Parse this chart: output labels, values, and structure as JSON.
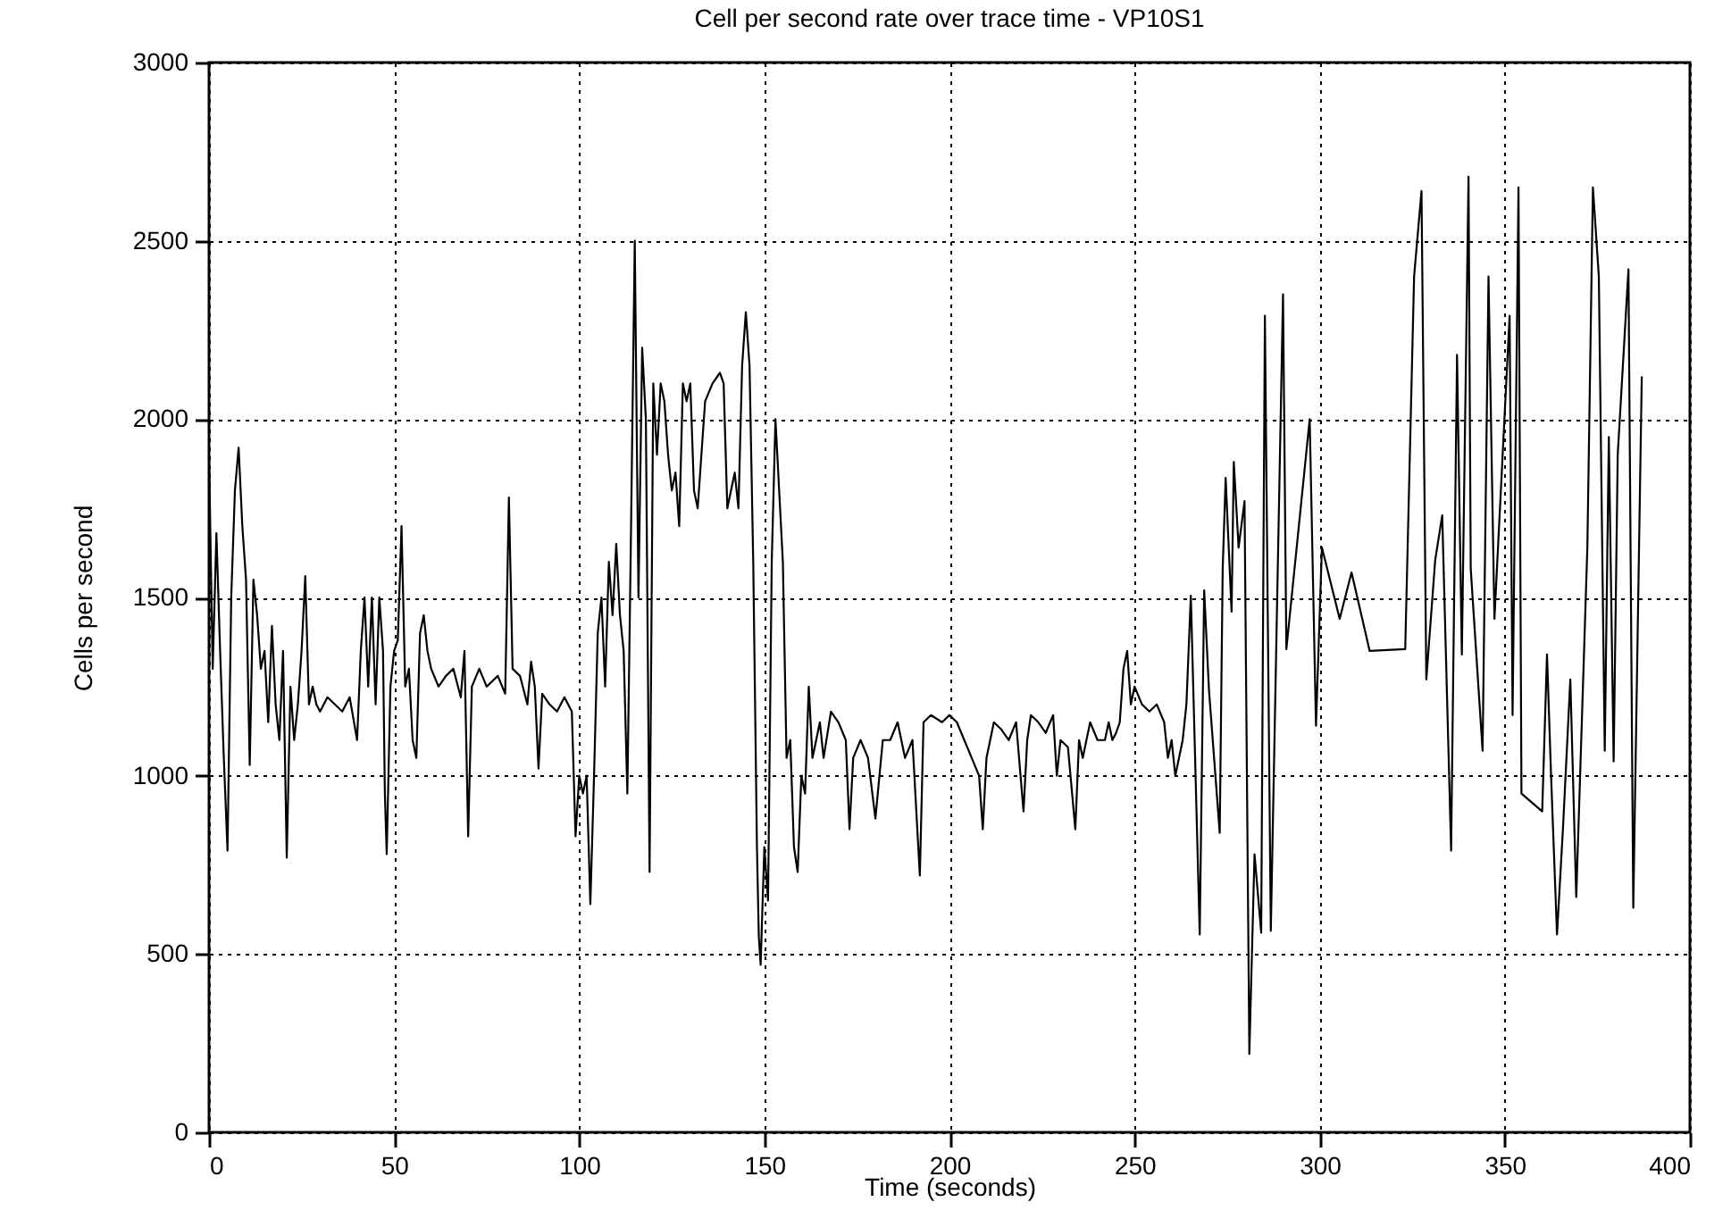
{
  "chart_data": {
    "type": "line",
    "title": "Cell per second rate over trace time - VP10S1",
    "xlabel": "Time (seconds)",
    "ylabel": "Cells per second",
    "xlim": [
      0,
      400
    ],
    "xticks": [
      0,
      50,
      100,
      150,
      200,
      250,
      300,
      350,
      400
    ],
    "ylim": [
      0,
      3000
    ],
    "yticks": [
      0,
      500,
      1000,
      1500,
      2000,
      2500,
      3000
    ],
    "grid": true,
    "legend": false,
    "line_style": "solid",
    "series": [
      {
        "color": "#000000",
        "x": [
          0,
          1,
          2,
          3,
          4,
          5,
          6,
          7,
          8,
          9,
          10,
          11,
          12,
          13,
          14,
          15,
          16,
          17,
          18,
          19,
          20,
          21,
          22,
          23,
          24,
          25,
          26,
          27,
          28,
          29,
          30,
          32,
          34,
          36,
          38,
          40,
          41,
          42,
          43,
          44,
          45,
          46,
          47,
          47.5,
          48,
          49,
          50,
          51,
          52,
          53,
          54,
          55,
          56,
          57,
          58,
          59,
          60,
          62,
          64,
          66,
          68,
          69,
          70,
          71,
          73,
          75,
          78,
          80,
          81,
          82,
          84,
          86,
          87,
          88,
          89,
          90,
          92,
          94,
          96,
          98,
          99,
          100,
          101,
          102,
          103,
          104,
          105,
          106,
          107,
          108,
          109,
          110,
          111,
          112,
          113,
          114,
          115,
          116,
          117,
          118,
          119,
          120,
          121,
          122,
          123,
          124,
          125,
          126,
          127,
          128,
          129,
          130,
          131,
          132,
          134,
          136,
          138,
          139,
          140,
          141,
          142,
          143,
          144,
          145,
          146,
          147,
          148,
          148.5,
          149,
          150,
          151,
          152,
          153,
          154,
          155,
          156,
          157,
          158,
          159,
          160,
          161,
          162,
          163,
          164,
          165,
          166,
          168,
          170,
          172,
          173,
          174,
          176,
          178,
          180,
          182,
          184,
          186,
          188,
          190,
          192,
          193,
          195,
          198,
          200,
          202,
          204,
          206,
          208,
          209,
          210,
          212,
          214,
          216,
          218,
          220,
          221,
          222,
          224,
          226,
          228,
          229,
          230,
          232,
          234,
          235,
          236,
          238,
          240,
          242,
          243,
          244,
          245,
          246,
          247,
          248,
          249,
          250,
          252,
          254,
          256,
          258,
          259,
          260,
          261,
          262,
          263,
          264,
          265.2,
          267.6,
          268.8,
          270.1,
          273,
          273.8,
          274.6,
          276.2,
          276.8,
          278.1,
          279.7,
          281,
          282.4,
          284.2,
          285.2,
          286.8,
          290.1,
          291,
          297.3,
          299,
          300.6,
          305.4,
          308.6,
          313.5,
          323.1,
          325.5,
          327.5,
          328.8,
          331.2,
          333.1,
          335.5,
          337.1,
          338.4,
          340.2,
          340.8,
          344,
          345.6,
          347.2,
          351.3,
          352.1,
          353.7,
          354.5,
          360.1,
          361.4,
          362.5,
          364.1,
          365.7,
          367.7,
          369.3,
          372.3,
          373.8,
          375.4,
          377,
          378.1,
          379.4,
          380.5,
          383.4,
          384.7,
          387
        ],
        "values": [
          1900,
          1300,
          1680,
          1350,
          1050,
          790,
          1500,
          1800,
          1920,
          1700,
          1550,
          1030,
          1550,
          1450,
          1300,
          1350,
          1150,
          1420,
          1200,
          1100,
          1350,
          770,
          1250,
          1100,
          1200,
          1350,
          1560,
          1200,
          1250,
          1200,
          1180,
          1220,
          1200,
          1180,
          1220,
          1100,
          1350,
          1500,
          1250,
          1500,
          1200,
          1500,
          1350,
          950,
          780,
          1250,
          1350,
          1380,
          1700,
          1250,
          1300,
          1100,
          1050,
          1400,
          1450,
          1350,
          1300,
          1250,
          1280,
          1300,
          1220,
          1350,
          830,
          1250,
          1300,
          1250,
          1280,
          1230,
          1780,
          1300,
          1280,
          1200,
          1320,
          1250,
          1020,
          1230,
          1200,
          1180,
          1220,
          1180,
          830,
          1000,
          950,
          1000,
          640,
          1000,
          1400,
          1500,
          1250,
          1600,
          1450,
          1650,
          1450,
          1350,
          950,
          1700,
          2500,
          1500,
          2200,
          2000,
          730,
          2100,
          1900,
          2100,
          2050,
          1900,
          1800,
          1850,
          1700,
          2100,
          2050,
          2100,
          1800,
          1750,
          2050,
          2100,
          2130,
          2100,
          1750,
          1800,
          1850,
          1750,
          2150,
          2300,
          2150,
          1600,
          800,
          550,
          470,
          800,
          650,
          1600,
          2000,
          1800,
          1600,
          1050,
          1100,
          800,
          730,
          1000,
          950,
          1250,
          1050,
          1100,
          1150,
          1050,
          1180,
          1150,
          1100,
          850,
          1050,
          1100,
          1050,
          880,
          1100,
          1100,
          1150,
          1050,
          1100,
          720,
          1150,
          1170,
          1150,
          1170,
          1150,
          1100,
          1050,
          1000,
          850,
          1050,
          1150,
          1130,
          1100,
          1150,
          900,
          1100,
          1170,
          1150,
          1120,
          1170,
          1000,
          1100,
          1080,
          850,
          1100,
          1050,
          1150,
          1100,
          1100,
          1150,
          1100,
          1120,
          1150,
          1300,
          1350,
          1200,
          1250,
          1200,
          1180,
          1200,
          1150,
          1050,
          1100,
          1000,
          1050,
          1100,
          1200,
          1505,
          555,
          1520,
          1240,
          840,
          1580,
          1835,
          1460,
          1880,
          1640,
          1770,
          220,
          780,
          560,
          2290,
          565,
          2350,
          1355,
          2000,
          1140,
          1640,
          1440,
          1570,
          1350,
          1355,
          2400,
          2640,
          1270,
          1605,
          1730,
          790,
          2180,
          1340,
          2680,
          1580,
          1070,
          2400,
          1440,
          2290,
          1170,
          2650,
          950,
          900,
          1340,
          1000,
          555,
          850,
          1270,
          660,
          1640,
          2650,
          2400,
          1070,
          1950,
          1040,
          1900,
          2420,
          630,
          2120
        ]
      }
    ]
  }
}
